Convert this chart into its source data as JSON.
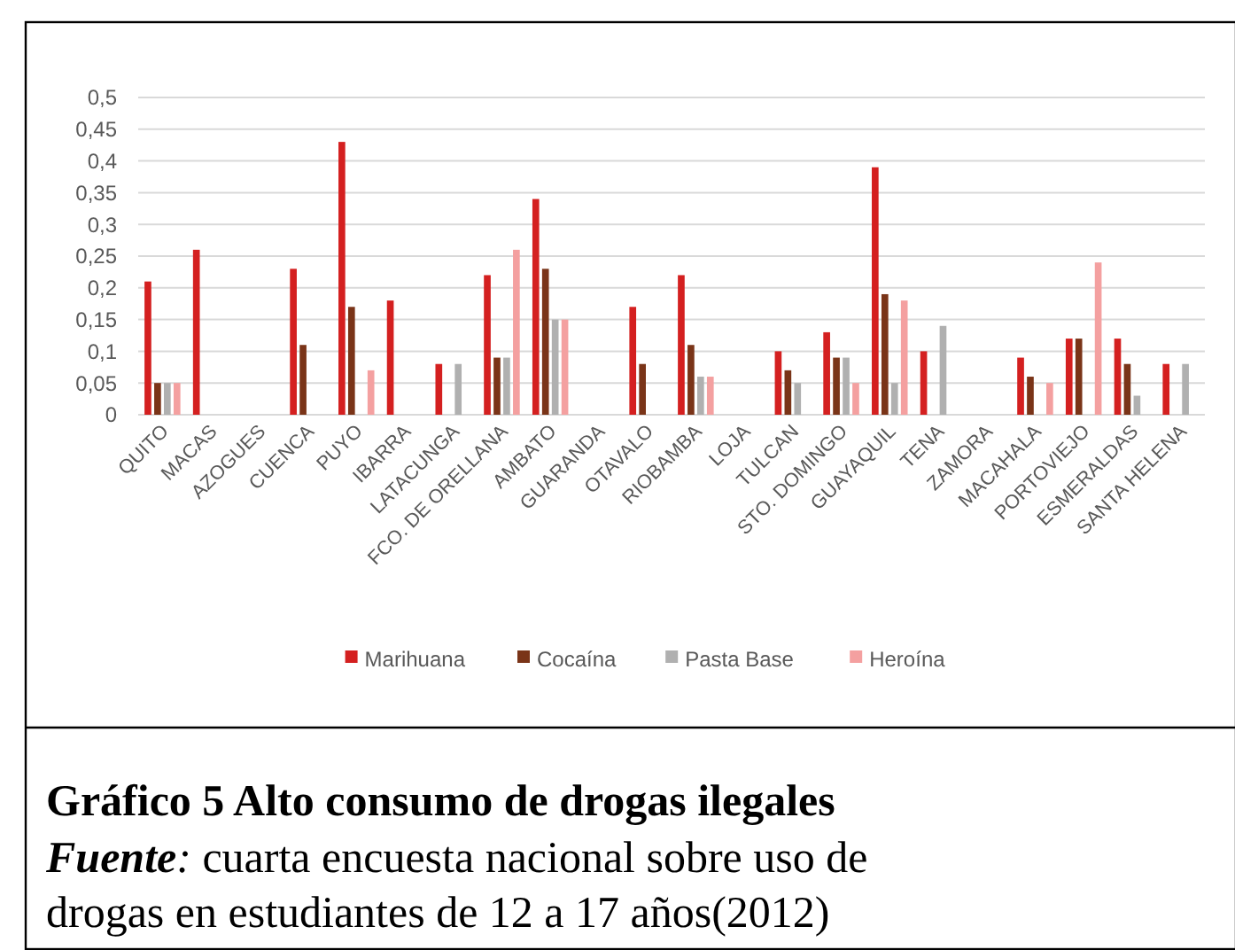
{
  "chart_data": {
    "type": "bar",
    "title": "Gráfico 5 Alto consumo de drogas ilegales",
    "annotations": [
      "Fuente: cuarta encuesta nacional sobre uso de drogas en estudiantes de 12 a 17 años(2012)"
    ],
    "categories": [
      "QUITO",
      "MACAS",
      "AZOGUES",
      "CUENCA",
      "PUYO",
      "IBARRA",
      "LATACUNGA",
      "FCO. DE ORELLANA",
      "AMBATO",
      "GUARANDA",
      "OTAVALO",
      "RIOBAMBA",
      "LOJA",
      "TULCAN",
      "STO. DOMINGO",
      "GUAYAQUIL",
      "TENA",
      "ZAMORA",
      "MACAHALA",
      "PORTOVIEJO",
      "ESMERALDAS",
      "SANTA HELENA"
    ],
    "series": [
      {
        "name": "Marihuana",
        "color": "#d42020",
        "values": [
          0.21,
          0.26,
          null,
          0.23,
          0.43,
          0.18,
          0.08,
          0.22,
          0.34,
          null,
          0.17,
          0.22,
          null,
          0.1,
          0.13,
          0.39,
          0.1,
          null,
          0.09,
          0.12,
          0.12,
          0.08
        ]
      },
      {
        "name": "Cocaína",
        "color": "#7a3418",
        "values": [
          0.05,
          null,
          null,
          0.11,
          0.17,
          null,
          null,
          0.09,
          0.23,
          null,
          0.08,
          0.11,
          null,
          0.07,
          0.09,
          0.19,
          null,
          null,
          0.06,
          0.12,
          0.08,
          null
        ]
      },
      {
        "name": "Pasta Base",
        "color": "#b0b0b0",
        "values": [
          0.05,
          null,
          null,
          null,
          null,
          null,
          0.08,
          0.09,
          0.15,
          null,
          null,
          0.06,
          null,
          0.05,
          0.09,
          0.05,
          0.14,
          null,
          null,
          null,
          0.03,
          0.08
        ]
      },
      {
        "name": "Heroína",
        "color": "#f4a0a0",
        "values": [
          0.05,
          null,
          null,
          null,
          0.07,
          null,
          null,
          0.26,
          0.15,
          null,
          null,
          0.06,
          null,
          null,
          0.05,
          0.18,
          null,
          null,
          0.05,
          0.24,
          null,
          null
        ]
      }
    ],
    "ylim": [
      0,
      0.5
    ],
    "yticks": [
      0,
      {
        "value": 0.05,
        "label": "0,05"
      },
      {
        "value": 0.1,
        "label": "0,1"
      },
      {
        "value": 0.15,
        "label": "0,15"
      },
      {
        "value": 0.2,
        "label": "0,2"
      },
      {
        "value": 0.25,
        "label": "0,25"
      },
      {
        "value": 0.3,
        "label": "0,3"
      },
      {
        "value": 0.35,
        "label": "0,35"
      },
      {
        "value": 0.4,
        "label": "0,4"
      },
      {
        "value": 0.45,
        "label": "0,45"
      },
      {
        "value": 0.5,
        "label": "0,5"
      }
    ],
    "grid": "y",
    "legend": "bottom"
  }
}
